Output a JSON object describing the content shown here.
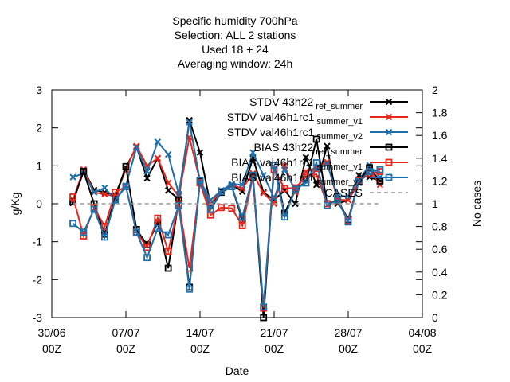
{
  "chart_data": {
    "type": "line",
    "title_lines": [
      "Specific humidity 700hPa",
      "Selection: ALL       2 stations",
      "Used  18  + 24",
      "Averaging window: 24h"
    ],
    "xlabel": "Date",
    "ylabel": "g/Kg",
    "y2label": "No cases",
    "xlim": [
      "2024-06-30T00:00",
      "2024-08-04T00:00"
    ],
    "ylim": [
      -3,
      3
    ],
    "y2lim": [
      0,
      2
    ],
    "x_ticks": [
      {
        "date": "2024-06-30T00:00",
        "line1": "30/06",
        "line2": "00Z"
      },
      {
        "date": "2024-07-07T00:00",
        "line1": "07/07",
        "line2": "00Z"
      },
      {
        "date": "2024-07-14T00:00",
        "line1": "14/07",
        "line2": "00Z"
      },
      {
        "date": "2024-07-21T00:00",
        "line1": "21/07",
        "line2": "00Z"
      },
      {
        "date": "2024-07-28T00:00",
        "line1": "28/07",
        "line2": "00Z"
      },
      {
        "date": "2024-08-04T00:00",
        "line1": "04/08",
        "line2": "00Z"
      }
    ],
    "y_ticks": [
      "-3",
      "-2",
      "-1",
      "0",
      "1",
      "2",
      "3"
    ],
    "y2_ticks": [
      "0",
      "0.2",
      "0.4",
      "0.6",
      "0.8",
      "1",
      "1.2",
      "1.4",
      "1.6",
      "1.8",
      "2"
    ],
    "grid": false,
    "legend_position": "top-right",
    "x": [
      "2024-07-02T00:00",
      "2024-07-03T00:00",
      "2024-07-04T00:00",
      "2024-07-05T00:00",
      "2024-07-06T00:00",
      "2024-07-07T00:00",
      "2024-07-08T00:00",
      "2024-07-09T00:00",
      "2024-07-10T00:00",
      "2024-07-11T00:00",
      "2024-07-12T00:00",
      "2024-07-13T00:00",
      "2024-07-14T00:00",
      "2024-07-15T00:00",
      "2024-07-16T00:00",
      "2024-07-17T00:00",
      "2024-07-18T00:00",
      "2024-07-19T00:00",
      "2024-07-20T00:00",
      "2024-07-21T00:00",
      "2024-07-22T00:00",
      "2024-07-23T00:00",
      "2024-07-24T00:00",
      "2024-07-25T00:00",
      "2024-07-26T00:00",
      "2024-07-27T00:00",
      "2024-07-28T00:00",
      "2024-07-29T00:00",
      "2024-07-30T00:00",
      "2024-07-31T00:00"
    ],
    "series": [
      {
        "name": "STDV 43h22_ref_summer",
        "legend_base": "STDV 43h22",
        "legend_sub": "ref_summer",
        "color": "#000000",
        "marker": "x",
        "axis": "y",
        "values": [
          0.02,
          0.9,
          0.36,
          0.3,
          0.22,
          0.95,
          1.5,
          0.67,
          1.2,
          0.35,
          0.12,
          2.2,
          1.35,
          -0.05,
          0.35,
          0.5,
          0.32,
          1.2,
          0.3,
          0.1,
          0.35,
          0.0,
          1.22,
          0.5,
          1.52,
          0.0,
          0.1,
          0.75,
          0.7,
          0.6
        ]
      },
      {
        "name": "STDV val46h1rc1_summer_v1",
        "legend_base": "STDV val46h1rc1",
        "legend_sub": "summer_v1",
        "color": "#e8261c",
        "marker": "x",
        "axis": "y",
        "values": [
          0.1,
          0.9,
          0.3,
          0.25,
          0.2,
          0.9,
          1.52,
          1.0,
          1.2,
          0.55,
          0.2,
          1.75,
          0.6,
          0.0,
          0.35,
          0.5,
          0.4,
          0.8,
          0.28,
          0.0,
          1.0,
          0.3,
          0.85,
          0.95,
          1.1,
          0.1,
          0.1,
          0.55,
          0.9,
          0.5
        ]
      },
      {
        "name": "STDV val46h1rc1_summer_v2",
        "legend_base": "STDV val46h1rc1",
        "legend_sub": "summer_v2",
        "color": "#1e6faa",
        "marker": "x",
        "axis": "y",
        "values": [
          0.7,
          0.8,
          0.3,
          0.42,
          0.1,
          0.48,
          1.48,
          0.85,
          1.63,
          1.3,
          0.25,
          2.15,
          0.6,
          0.1,
          0.35,
          0.52,
          0.5,
          1.35,
          0.75,
          0.15,
          0.9,
          0.35,
          0.6,
          0.9,
          1.05,
          0.2,
          0.2,
          0.62,
          1.02,
          0.7
        ]
      },
      {
        "name": "BIAS 43h22_ref_summer",
        "legend_base": "BIAS 43h22",
        "legend_sub": "ref_summer",
        "color": "#000000",
        "marker": "box",
        "axis": "y",
        "values": [
          0.05,
          0.85,
          0.0,
          -0.8,
          0.18,
          0.98,
          -0.68,
          -1.08,
          -0.5,
          -1.7,
          0.1,
          -2.2,
          0.6,
          -0.15,
          0.3,
          0.45,
          -0.42,
          0.72,
          -3.0,
          1.02,
          -0.25,
          0.4,
          0.55,
          1.7,
          0.0,
          0.1,
          -0.42,
          0.6,
          0.95,
          0.6
        ]
      },
      {
        "name": "BIAS val46h1rc1_summer_v1",
        "legend_base": "BIAS val46h1rc1",
        "legend_sub": "summer_v1",
        "color": "#e8261c",
        "marker": "box",
        "axis": "y",
        "values": [
          0.18,
          -0.85,
          -0.1,
          -0.6,
          0.3,
          0.45,
          -0.75,
          -1.15,
          -0.38,
          -1.25,
          0.0,
          -1.7,
          0.55,
          -0.3,
          -0.1,
          -0.12,
          -0.58,
          0.7,
          -2.75,
          0.9,
          0.4,
          0.42,
          0.7,
          0.78,
          0.0,
          0.08,
          -0.45,
          0.6,
          0.78,
          0.85
        ]
      },
      {
        "name": "BIAS val46h1rc1_summer_v2",
        "legend_base": "BIAS val46h1rc1",
        "legend_sub": "summer_v2",
        "color": "#1e6faa",
        "marker": "box",
        "axis": "y",
        "values": [
          -0.52,
          -0.75,
          -0.15,
          -0.88,
          0.1,
          0.45,
          -0.75,
          -1.42,
          -0.65,
          -0.82,
          -0.05,
          -2.25,
          0.62,
          -0.15,
          0.32,
          0.45,
          -0.35,
          0.75,
          -2.72,
          1.02,
          -0.35,
          0.38,
          0.55,
          1.08,
          -0.05,
          0.1,
          -0.48,
          0.58,
          0.85,
          0.9
        ]
      },
      {
        "name": "CASES",
        "legend_base": "CASES",
        "legend_sub": "",
        "color": "#9a9a9a",
        "marker": "none",
        "axis": "y2",
        "dashed": true,
        "values": [
          1,
          1,
          1,
          1,
          1,
          1,
          1,
          1,
          1,
          1,
          1,
          1,
          1,
          1,
          1,
          1,
          1,
          1,
          1,
          1,
          1,
          1,
          1,
          1,
          1,
          1,
          1,
          1,
          1,
          1
        ]
      }
    ]
  }
}
